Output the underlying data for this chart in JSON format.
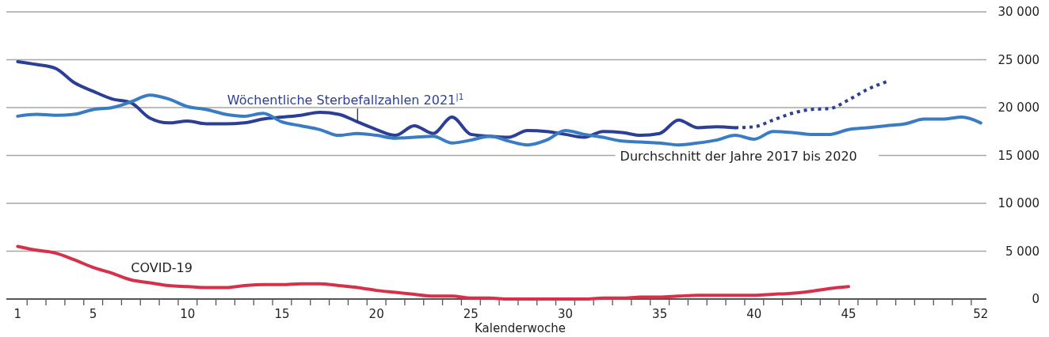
{
  "chart_data": {
    "type": "line",
    "xlabel": "Kalenderwoche",
    "xlim": [
      0.4,
      52.3
    ],
    "ylim": [
      0,
      30000
    ],
    "xticks": [
      1,
      5,
      10,
      15,
      20,
      25,
      30,
      35,
      40,
      45,
      52,
      {
        "value": 1.5,
        "label": null
      },
      {
        "value": 2.5,
        "label": null
      },
      {
        "value": 3.5,
        "label": null
      },
      {
        "value": 4.5,
        "label": null
      },
      {
        "value": 5.5,
        "label": null
      },
      {
        "value": 6.5,
        "label": null
      },
      {
        "value": 7.5,
        "label": null
      },
      {
        "value": 8.5,
        "label": null
      },
      {
        "value": 9.5,
        "label": null
      },
      {
        "value": 10.5,
        "label": null
      },
      {
        "value": 11.5,
        "label": null
      },
      {
        "value": 12.5,
        "label": null
      },
      {
        "value": 13.5,
        "label": null
      },
      {
        "value": 14.5,
        "label": null
      },
      {
        "value": 15.5,
        "label": null
      },
      {
        "value": 16.5,
        "label": null
      },
      {
        "value": 17.5,
        "label": null
      },
      {
        "value": 18.5,
        "label": null
      },
      {
        "value": 19.5,
        "label": null
      },
      {
        "value": 20.5,
        "label": null
      },
      {
        "value": 21.5,
        "label": null
      },
      {
        "value": 22.5,
        "label": null
      },
      {
        "value": 23.5,
        "label": null
      },
      {
        "value": 24.5,
        "label": null
      },
      {
        "value": 25.5,
        "label": null
      },
      {
        "value": 26.5,
        "label": null
      },
      {
        "value": 27.5,
        "label": null
      },
      {
        "value": 28.5,
        "label": null
      },
      {
        "value": 29.5,
        "label": null
      },
      {
        "value": 30.5,
        "label": null
      },
      {
        "value": 31.5,
        "label": null
      },
      {
        "value": 32.5,
        "label": null
      },
      {
        "value": 33.5,
        "label": null
      },
      {
        "value": 34.5,
        "label": null
      },
      {
        "value": 35.5,
        "label": null
      },
      {
        "value": 36.5,
        "label": null
      },
      {
        "value": 37.5,
        "label": null
      },
      {
        "value": 38.5,
        "label": null
      },
      {
        "value": 39.5,
        "label": null
      },
      {
        "value": 40.5,
        "label": null
      },
      {
        "value": 41.5,
        "label": null
      },
      {
        "value": 42.5,
        "label": null
      },
      {
        "value": 43.5,
        "label": null
      },
      {
        "value": 44.5,
        "label": null
      },
      {
        "value": 45.5,
        "label": null
      },
      {
        "value": 46.5,
        "label": null
      },
      {
        "value": 47.5,
        "label": null
      },
      {
        "value": 48.5,
        "label": null
      },
      {
        "value": 49.5,
        "label": null
      },
      {
        "value": 50.5,
        "label": null
      },
      {
        "value": 51.5,
        "label": null
      }
    ],
    "yticks": [
      0,
      {
        "value": 5000,
        "label": "5 000"
      },
      {
        "value": 10000,
        "label": "10 000"
      },
      {
        "value": 15000,
        "label": "15 000"
      },
      {
        "value": 20000,
        "label": "20 000"
      },
      {
        "value": 25000,
        "label": "25 000"
      },
      {
        "value": 30000,
        "label": "30 000"
      }
    ],
    "grid": "y",
    "marker": "none",
    "line_style": "solid",
    "series": [
      {
        "name": "Wöchentliche Sterbefallzahlen 2021$^{|1}$",
        "color": "#2b3f95",
        "x": [
          1,
          2,
          3,
          4,
          5,
          6,
          7,
          8,
          9,
          10,
          11,
          12,
          13,
          14,
          15,
          16,
          17,
          18,
          19,
          20,
          21,
          22,
          23,
          24,
          25,
          26,
          27,
          28,
          29,
          30,
          31,
          32,
          33,
          34,
          35,
          36,
          37,
          38,
          39
        ],
        "values": [
          24800,
          24500,
          24100,
          22600,
          21700,
          20900,
          20500,
          18900,
          18400,
          18600,
          18300,
          18300,
          18400,
          18800,
          19000,
          19200,
          19500,
          19300,
          18500,
          17700,
          17100,
          18100,
          17300,
          19000,
          17200,
          17000,
          16900,
          17600,
          17500,
          17200,
          16900,
          17500,
          17400,
          17100,
          17300,
          18700,
          17900,
          18000,
          17900
        ]
      },
      {
        "color": "#2b3f95",
        "line_style": "dotted",
        "x": [
          39,
          40,
          41,
          42,
          43,
          44,
          45,
          46,
          47
        ],
        "values": [
          17900,
          18000,
          18700,
          19400,
          19800,
          19900,
          20800,
          21900,
          22700
        ]
      },
      {
        "name": "Durchschnitt der Jahre 2017 bis 2020",
        "color": "#3a7cc4",
        "x": [
          1,
          2,
          3,
          4,
          5,
          6,
          7,
          8,
          9,
          10,
          11,
          12,
          13,
          14,
          15,
          16,
          17,
          18,
          19,
          20,
          21,
          22,
          23,
          24,
          25,
          26,
          27,
          28,
          29,
          30,
          31,
          32,
          33,
          34,
          35,
          36,
          37,
          38,
          39,
          40,
          41,
          42,
          43,
          44,
          45,
          46,
          47,
          48,
          49,
          50,
          51,
          52
        ],
        "values": [
          19100,
          19300,
          19200,
          19300,
          19800,
          20000,
          20600,
          21300,
          20900,
          20100,
          19800,
          19300,
          19100,
          19400,
          18500,
          18100,
          17700,
          17100,
          17300,
          17100,
          16800,
          16900,
          17000,
          16300,
          16600,
          17000,
          16500,
          16100,
          16600,
          17600,
          17200,
          16900,
          16500,
          16400,
          16300,
          16100,
          16300,
          16600,
          17100,
          16700,
          17500,
          17400,
          17200,
          17200,
          17700,
          17900,
          18100,
          18300,
          18800,
          18800,
          19000,
          18400
        ]
      },
      {
        "name": "COVID-19",
        "color": "#d6304a",
        "x": [
          1,
          2,
          3,
          4,
          5,
          6,
          7,
          8,
          9,
          10,
          11,
          12,
          13,
          14,
          15,
          16,
          17,
          18,
          19,
          20,
          21,
          22,
          23,
          24,
          25,
          26,
          27,
          28,
          29,
          30,
          31,
          32,
          33,
          34,
          35,
          36,
          37,
          38,
          39,
          40,
          41,
          42,
          43,
          44,
          45
        ],
        "values": [
          5500,
          5100,
          4800,
          4100,
          3300,
          2700,
          2000,
          1700,
          1400,
          1300,
          1200,
          1200,
          1400,
          1500,
          1500,
          1600,
          1600,
          1400,
          1200,
          900,
          700,
          500,
          300,
          300,
          100,
          100,
          0,
          0,
          0,
          0,
          0,
          100,
          100,
          200,
          200,
          300,
          400,
          400,
          400,
          400,
          500,
          600,
          800,
          1100,
          1300
        ]
      }
    ]
  }
}
